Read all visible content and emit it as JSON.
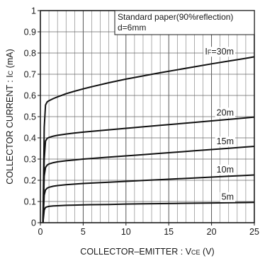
{
  "chart_data": {
    "type": "line",
    "xlabel": "COLLECTOR–EMITTER : V",
    "xlabel_sub": "CE",
    "xlabel_unit": " (V)",
    "ylabel": "COLLECTOR  CURRENT : I",
    "ylabel_sub": "C",
    "ylabel_unit": " (mA)",
    "xlim": [
      0,
      25
    ],
    "ylim": [
      0,
      1
    ],
    "xticks": [
      0,
      5,
      10,
      15,
      20,
      25
    ],
    "yticks": [
      0,
      0.1,
      0.2,
      0.3,
      0.4,
      0.5,
      0.6,
      0.7,
      0.8,
      0.9,
      1
    ],
    "x_tick_labels": [
      "0",
      "5",
      "10",
      "15",
      "20",
      "25"
    ],
    "y_tick_labels": [
      "0",
      "0.1",
      "0.2",
      "0.3",
      "0.4",
      "0.5",
      "0.6",
      "0.7",
      "0.8",
      "0.9",
      "1"
    ],
    "grid": true,
    "annotation": [
      "Standard paper(90%reflection)",
      "d=6mm"
    ],
    "series": [
      {
        "name": "IF=30m",
        "label_main": "I",
        "label_sub": "F",
        "label_rest": "=30m",
        "x": [
          0.3,
          0.45,
          0.6,
          0.8,
          1,
          1.5,
          2,
          3,
          4,
          5,
          6,
          8,
          10,
          12,
          14,
          16,
          18,
          20,
          22,
          24,
          25
        ],
        "y": [
          0.0,
          0.45,
          0.555,
          0.57,
          0.575,
          0.585,
          0.593,
          0.608,
          0.62,
          0.631,
          0.641,
          0.66,
          0.677,
          0.692,
          0.707,
          0.721,
          0.735,
          0.749,
          0.762,
          0.775,
          0.782
        ]
      },
      {
        "name": "20m",
        "x": [
          0.3,
          0.45,
          0.6,
          0.8,
          1,
          1.5,
          2,
          3,
          4,
          5,
          6,
          8,
          10,
          12,
          14,
          16,
          18,
          20,
          22,
          24,
          25
        ],
        "y": [
          0.0,
          0.3,
          0.385,
          0.398,
          0.402,
          0.408,
          0.412,
          0.418,
          0.423,
          0.427,
          0.431,
          0.438,
          0.445,
          0.452,
          0.459,
          0.466,
          0.473,
          0.48,
          0.487,
          0.494,
          0.498
        ]
      },
      {
        "name": "15m",
        "x": [
          0.3,
          0.45,
          0.6,
          0.8,
          1,
          1.5,
          2,
          3,
          4,
          5,
          6,
          8,
          10,
          12,
          14,
          16,
          18,
          20,
          22,
          24,
          25
        ],
        "y": [
          0.0,
          0.22,
          0.26,
          0.272,
          0.277,
          0.283,
          0.287,
          0.292,
          0.296,
          0.3,
          0.303,
          0.309,
          0.315,
          0.321,
          0.327,
          0.333,
          0.339,
          0.345,
          0.351,
          0.357,
          0.36
        ]
      },
      {
        "name": "10m",
        "x": [
          0.3,
          0.45,
          0.6,
          0.8,
          1,
          1.5,
          2,
          3,
          4,
          5,
          6,
          8,
          10,
          12,
          14,
          16,
          18,
          20,
          22,
          24,
          25
        ],
        "y": [
          0.0,
          0.13,
          0.155,
          0.163,
          0.167,
          0.172,
          0.175,
          0.179,
          0.182,
          0.185,
          0.187,
          0.191,
          0.195,
          0.199,
          0.203,
          0.207,
          0.211,
          0.215,
          0.219,
          0.223,
          0.225
        ]
      },
      {
        "name": "5m",
        "x": [
          0.3,
          0.45,
          0.6,
          0.8,
          1,
          1.5,
          2,
          3,
          4,
          5,
          6,
          8,
          10,
          12,
          14,
          16,
          18,
          20,
          22,
          24,
          25
        ],
        "y": [
          0.0,
          0.06,
          0.072,
          0.075,
          0.077,
          0.079,
          0.08,
          0.082,
          0.083,
          0.084,
          0.085,
          0.086,
          0.088,
          0.089,
          0.09,
          0.091,
          0.092,
          0.093,
          0.094,
          0.095,
          0.096
        ]
      }
    ]
  }
}
